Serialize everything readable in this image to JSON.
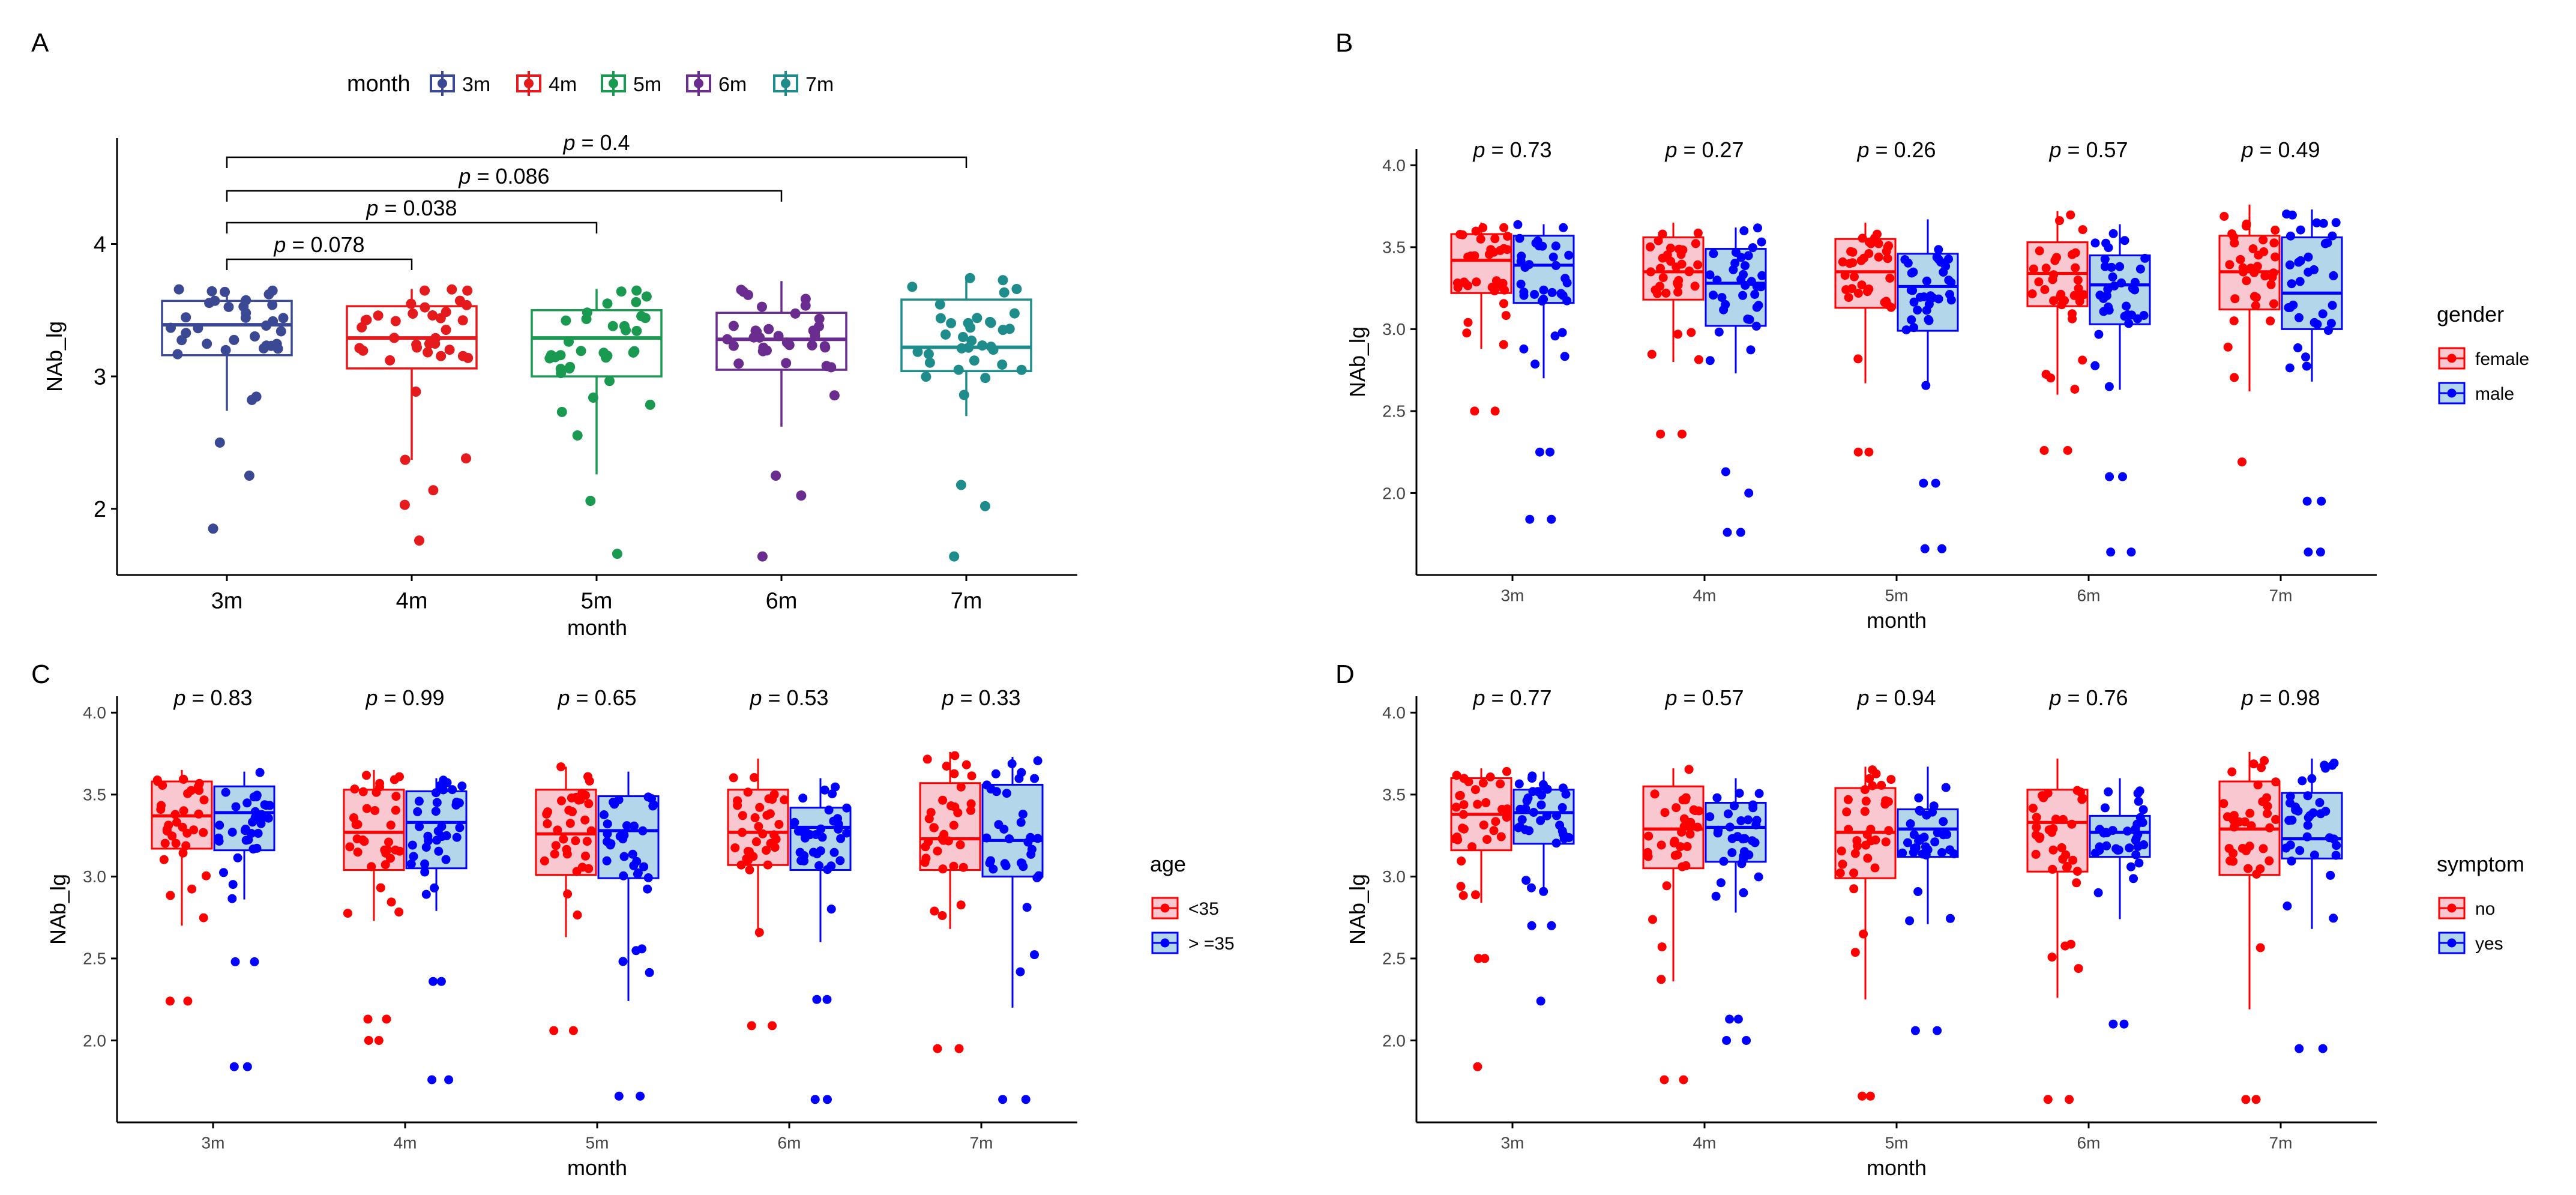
{
  "figure": {
    "colors": {
      "m3": "#3b4994",
      "m4": "#e41a1c",
      "m5": "#1a9a50",
      "m6": "#6a2c8e",
      "m7": "#1f8c8c",
      "red": "#ff0000",
      "blue": "#0000ff",
      "red_fill": "#f8c7d0",
      "blue_fill": "#b3d6ea",
      "axis": "#000000"
    }
  },
  "chart_data": [
    {
      "panel": "A",
      "type": "box",
      "xlabel": "month",
      "ylabel": "NAb_lg",
      "ylim": [
        1.5,
        4.8
      ],
      "yticks": [
        "2",
        "3",
        "4"
      ],
      "categories": [
        "3m",
        "4m",
        "5m",
        "6m",
        "7m"
      ],
      "legend": {
        "title": "month",
        "placement": "top",
        "entries": [
          "3m",
          "4m",
          "5m",
          "6m",
          "7m"
        ]
      },
      "boxes": [
        {
          "name": "3m",
          "q1": 3.16,
          "median": 3.39,
          "q3": 3.57,
          "wlow": 2.74,
          "whigh": 3.66,
          "outliers": [
            2.5,
            2.25,
            1.85
          ]
        },
        {
          "name": "4m",
          "q1": 3.06,
          "median": 3.29,
          "q3": 3.53,
          "wlow": 2.37,
          "whigh": 3.66,
          "outliers": [
            2.37,
            2.14,
            2.03,
            1.76
          ]
        },
        {
          "name": "5m",
          "q1": 3.0,
          "median": 3.29,
          "q3": 3.5,
          "wlow": 2.26,
          "whigh": 3.66,
          "outliers": [
            2.06,
            1.66
          ]
        },
        {
          "name": "6m",
          "q1": 3.05,
          "median": 3.28,
          "q3": 3.48,
          "wlow": 2.62,
          "whigh": 3.72,
          "outliers": [
            2.25,
            2.1,
            1.64
          ]
        },
        {
          "name": "7m",
          "q1": 3.04,
          "median": 3.22,
          "q3": 3.58,
          "wlow": 2.7,
          "whigh": 3.76,
          "outliers": [
            2.18,
            2.02,
            1.64
          ]
        }
      ],
      "comparisons": [
        {
          "from": "3m",
          "to": "4m",
          "label": "p = 0.078"
        },
        {
          "from": "3m",
          "to": "5m",
          "label": "p = 0.038"
        },
        {
          "from": "3m",
          "to": "6m",
          "label": "p = 0.086"
        },
        {
          "from": "3m",
          "to": "7m",
          "label": "p = 0.4"
        }
      ]
    },
    {
      "panel": "B",
      "type": "box",
      "xlabel": "month",
      "ylabel": "NAb_lg",
      "ylim": [
        1.5,
        4.1
      ],
      "yticks": [
        "2.0",
        "2.5",
        "3.0",
        "3.5",
        "4.0"
      ],
      "categories": [
        "3m",
        "4m",
        "5m",
        "6m",
        "7m"
      ],
      "legend": {
        "title": "gender",
        "placement": "right",
        "entries": [
          "female",
          "male"
        ]
      },
      "pvalues": [
        "p = 0.73",
        "p = 0.27",
        "p = 0.26",
        "p = 0.57",
        "p = 0.49"
      ],
      "series": [
        {
          "name": "female",
          "boxes": [
            {
              "q1": 3.22,
              "median": 3.42,
              "q3": 3.58,
              "wlow": 2.88,
              "whigh": 3.65,
              "outliers": [
                2.5,
                2.5
              ]
            },
            {
              "q1": 3.18,
              "median": 3.35,
              "q3": 3.56,
              "wlow": 2.8,
              "whigh": 3.65,
              "outliers": [
                2.36,
                2.36
              ]
            },
            {
              "q1": 3.13,
              "median": 3.35,
              "q3": 3.55,
              "wlow": 2.67,
              "whigh": 3.65,
              "outliers": [
                2.25,
                2.25
              ]
            },
            {
              "q1": 3.14,
              "median": 3.34,
              "q3": 3.53,
              "wlow": 2.6,
              "whigh": 3.72,
              "outliers": [
                2.26,
                2.26
              ]
            },
            {
              "q1": 3.12,
              "median": 3.35,
              "q3": 3.57,
              "wlow": 2.62,
              "whigh": 3.76,
              "outliers": [
                2.19
              ]
            }
          ]
        },
        {
          "name": "male",
          "boxes": [
            {
              "q1": 3.16,
              "median": 3.39,
              "q3": 3.57,
              "wlow": 2.7,
              "whigh": 3.64,
              "outliers": [
                2.25,
                2.25,
                1.84,
                1.84
              ]
            },
            {
              "q1": 3.02,
              "median": 3.28,
              "q3": 3.49,
              "wlow": 2.73,
              "whigh": 3.62,
              "outliers": [
                2.13,
                2.0,
                1.76,
                1.76
              ]
            },
            {
              "q1": 2.99,
              "median": 3.26,
              "q3": 3.46,
              "wlow": 2.64,
              "whigh": 3.67,
              "outliers": [
                2.06,
                2.06,
                1.66,
                1.66
              ]
            },
            {
              "q1": 3.03,
              "median": 3.27,
              "q3": 3.45,
              "wlow": 2.63,
              "whigh": 3.64,
              "outliers": [
                2.1,
                2.1,
                1.64,
                1.64
              ]
            },
            {
              "q1": 3.0,
              "median": 3.22,
              "q3": 3.56,
              "wlow": 2.68,
              "whigh": 3.73,
              "outliers": [
                1.95,
                1.95,
                1.64,
                1.64
              ]
            }
          ]
        }
      ]
    },
    {
      "panel": "C",
      "type": "box",
      "xlabel": "month",
      "ylabel": "NAb_lg",
      "ylim": [
        1.5,
        4.1
      ],
      "yticks": [
        "2.0",
        "2.5",
        "3.0",
        "3.5",
        "4.0"
      ],
      "categories": [
        "3m",
        "4m",
        "5m",
        "6m",
        "7m"
      ],
      "legend": {
        "title": "age",
        "placement": "right",
        "entries": [
          "<35",
          "> =35"
        ]
      },
      "pvalues": [
        "p = 0.83",
        "p = 0.99",
        "p = 0.65",
        "p = 0.53",
        "p = 0.33"
      ],
      "series": [
        {
          "name": "<35",
          "boxes": [
            {
              "q1": 3.17,
              "median": 3.37,
              "q3": 3.58,
              "wlow": 2.7,
              "whigh": 3.65,
              "outliers": [
                2.24,
                2.24
              ]
            },
            {
              "q1": 3.04,
              "median": 3.27,
              "q3": 3.53,
              "wlow": 2.73,
              "whigh": 3.65,
              "outliers": [
                2.13,
                2.13,
                2.0,
                2.0
              ]
            },
            {
              "q1": 3.01,
              "median": 3.26,
              "q3": 3.53,
              "wlow": 2.63,
              "whigh": 3.67,
              "outliers": [
                2.06,
                2.06
              ]
            },
            {
              "q1": 3.07,
              "median": 3.27,
              "q3": 3.53,
              "wlow": 2.63,
              "whigh": 3.72,
              "outliers": [
                2.09,
                2.09
              ]
            },
            {
              "q1": 3.04,
              "median": 3.23,
              "q3": 3.57,
              "wlow": 2.68,
              "whigh": 3.76,
              "outliers": [
                1.95,
                1.95
              ]
            }
          ]
        },
        {
          "name": "> =35",
          "boxes": [
            {
              "q1": 3.16,
              "median": 3.39,
              "q3": 3.55,
              "wlow": 2.86,
              "whigh": 3.64,
              "outliers": [
                2.48,
                2.48,
                1.84,
                1.84
              ]
            },
            {
              "q1": 3.05,
              "median": 3.33,
              "q3": 3.52,
              "wlow": 2.79,
              "whigh": 3.6,
              "outliers": [
                2.36,
                2.36,
                1.76,
                1.76
              ]
            },
            {
              "q1": 2.99,
              "median": 3.28,
              "q3": 3.49,
              "wlow": 2.24,
              "whigh": 3.64,
              "outliers": [
                1.66,
                1.66
              ]
            },
            {
              "q1": 3.04,
              "median": 3.3,
              "q3": 3.42,
              "wlow": 2.6,
              "whigh": 3.6,
              "outliers": [
                2.25,
                2.25,
                1.64,
                1.64
              ]
            },
            {
              "q1": 3.0,
              "median": 3.22,
              "q3": 3.56,
              "wlow": 2.2,
              "whigh": 3.73,
              "outliers": [
                1.64,
                1.64
              ]
            }
          ]
        }
      ]
    },
    {
      "panel": "D",
      "type": "box",
      "xlabel": "month",
      "ylabel": "NAb_lg",
      "ylim": [
        1.5,
        4.1
      ],
      "yticks": [
        "2.0",
        "2.5",
        "3.0",
        "3.5",
        "4.0"
      ],
      "categories": [
        "3m",
        "4m",
        "5m",
        "6m",
        "7m"
      ],
      "legend": {
        "title": "symptom",
        "placement": "right",
        "entries": [
          "no",
          "yes"
        ]
      },
      "pvalues": [
        "p = 0.77",
        "p = 0.57",
        "p = 0.94",
        "p = 0.76",
        "p = 0.98"
      ],
      "series": [
        {
          "name": "no",
          "boxes": [
            {
              "q1": 3.16,
              "median": 3.38,
              "q3": 3.6,
              "wlow": 2.84,
              "whigh": 3.66,
              "outliers": [
                2.5,
                2.5,
                1.84
              ]
            },
            {
              "q1": 3.05,
              "median": 3.29,
              "q3": 3.55,
              "wlow": 2.36,
              "whigh": 3.66,
              "outliers": [
                1.76,
                1.76
              ]
            },
            {
              "q1": 2.99,
              "median": 3.27,
              "q3": 3.54,
              "wlow": 2.25,
              "whigh": 3.67,
              "outliers": [
                1.66,
                1.66
              ]
            },
            {
              "q1": 3.03,
              "median": 3.33,
              "q3": 3.53,
              "wlow": 2.26,
              "whigh": 3.72,
              "outliers": [
                1.64,
                1.64
              ]
            },
            {
              "q1": 3.01,
              "median": 3.29,
              "q3": 3.58,
              "wlow": 2.19,
              "whigh": 3.76,
              "outliers": [
                1.64,
                1.64
              ]
            }
          ]
        },
        {
          "name": "yes",
          "boxes": [
            {
              "q1": 3.2,
              "median": 3.39,
              "q3": 3.53,
              "wlow": 2.9,
              "whigh": 3.64,
              "outliers": [
                2.7,
                2.7,
                2.24
              ]
            },
            {
              "q1": 3.09,
              "median": 3.3,
              "q3": 3.45,
              "wlow": 2.78,
              "whigh": 3.6,
              "outliers": [
                2.13,
                2.13,
                2.0,
                2.0
              ]
            },
            {
              "q1": 3.12,
              "median": 3.29,
              "q3": 3.41,
              "wlow": 2.71,
              "whigh": 3.67,
              "outliers": [
                2.06,
                2.06
              ]
            },
            {
              "q1": 3.12,
              "median": 3.27,
              "q3": 3.37,
              "wlow": 2.74,
              "whigh": 3.6,
              "outliers": [
                2.1,
                2.1
              ]
            },
            {
              "q1": 3.11,
              "median": 3.23,
              "q3": 3.51,
              "wlow": 2.68,
              "whigh": 3.72,
              "outliers": [
                1.95,
                1.95
              ]
            }
          ]
        }
      ]
    }
  ]
}
